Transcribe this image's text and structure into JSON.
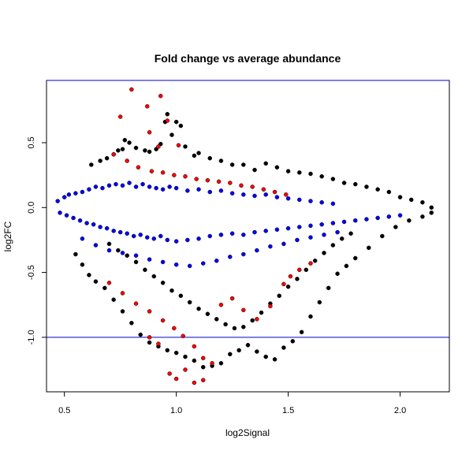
{
  "chart_data": {
    "type": "scatter",
    "title": "Fold change vs average abundance",
    "xlabel": "log2Signal",
    "ylabel": "log2FC",
    "xlim": [
      0.42,
      2.22
    ],
    "ylim": [
      -1.42,
      0.98
    ],
    "x_ticks": [
      0.5,
      1.0,
      1.5,
      2.0
    ],
    "x_tick_labels": [
      "0.5",
      "1.0",
      "1.5",
      "2.0"
    ],
    "y_ticks": [
      0.5,
      0.0,
      -0.5,
      -1.0
    ],
    "y_tick_labels": [
      "0.5",
      "0.0",
      "-0.5",
      "-1.0"
    ],
    "grid": false,
    "legend": "none",
    "reference_lines": [
      {
        "axis": "y",
        "value": 0.98,
        "color": "#0000cc"
      },
      {
        "axis": "y",
        "value": -1.0,
        "color": "#0000cc"
      }
    ],
    "series": [
      {
        "color": "#000000",
        "points": [
          [
            0.62,
            0.33
          ],
          [
            0.66,
            0.36
          ],
          [
            0.69,
            0.38
          ],
          [
            0.72,
            0.41
          ],
          [
            0.74,
            0.44
          ],
          [
            0.76,
            0.45
          ],
          [
            0.77,
            0.52
          ],
          [
            0.79,
            0.5
          ],
          [
            0.82,
            0.46
          ],
          [
            0.86,
            0.44
          ],
          [
            0.88,
            0.43
          ],
          [
            0.91,
            0.45
          ],
          [
            0.93,
            0.49
          ],
          [
            0.95,
            0.66
          ],
          [
            0.96,
            0.72
          ],
          [
            0.98,
            0.56
          ],
          [
            1.0,
            0.66
          ],
          [
            1.02,
            0.63
          ],
          [
            1.04,
            0.47
          ],
          [
            1.08,
            0.4
          ],
          [
            1.1,
            0.42
          ],
          [
            1.15,
            0.38
          ],
          [
            1.2,
            0.36
          ],
          [
            1.25,
            0.33
          ],
          [
            1.3,
            0.33
          ],
          [
            1.35,
            0.29
          ],
          [
            1.4,
            0.34
          ],
          [
            1.45,
            0.31
          ],
          [
            1.5,
            0.28
          ],
          [
            1.55,
            0.27
          ],
          [
            1.6,
            0.26
          ],
          [
            1.65,
            0.24
          ],
          [
            1.7,
            0.22
          ],
          [
            1.75,
            0.19
          ],
          [
            1.8,
            0.18
          ],
          [
            1.85,
            0.16
          ],
          [
            1.9,
            0.14
          ],
          [
            1.95,
            0.12
          ],
          [
            2.0,
            0.08
          ],
          [
            2.05,
            0.06
          ],
          [
            2.1,
            0.04
          ],
          [
            2.14,
            0.0
          ],
          [
            0.55,
            -0.36
          ],
          [
            0.58,
            -0.44
          ],
          [
            0.61,
            -0.52
          ],
          [
            0.64,
            -0.57
          ],
          [
            0.68,
            -0.62
          ],
          [
            0.72,
            -0.71
          ],
          [
            0.76,
            -0.8
          ],
          [
            0.8,
            -0.89
          ],
          [
            0.84,
            -0.98
          ],
          [
            0.88,
            -1.04
          ],
          [
            0.92,
            -1.07
          ],
          [
            0.96,
            -1.1
          ],
          [
            1.0,
            -1.12
          ],
          [
            1.04,
            -1.15
          ],
          [
            1.08,
            -1.18
          ],
          [
            1.12,
            -1.23
          ],
          [
            1.16,
            -1.22
          ],
          [
            1.2,
            -1.2
          ],
          [
            1.24,
            -1.13
          ],
          [
            1.28,
            -1.1
          ],
          [
            1.32,
            -1.06
          ],
          [
            1.36,
            -1.11
          ],
          [
            1.4,
            -1.15
          ],
          [
            1.44,
            -1.17
          ],
          [
            1.48,
            -1.08
          ],
          [
            1.52,
            -1.03
          ],
          [
            1.56,
            -0.96
          ],
          [
            1.6,
            -0.84
          ],
          [
            1.64,
            -0.73
          ],
          [
            1.68,
            -0.62
          ],
          [
            1.72,
            -0.51
          ],
          [
            1.76,
            -0.45
          ],
          [
            1.8,
            -0.39
          ],
          [
            1.86,
            -0.31
          ],
          [
            1.92,
            -0.22
          ],
          [
            1.98,
            -0.15
          ],
          [
            2.04,
            -0.1
          ],
          [
            2.1,
            -0.07
          ],
          [
            2.14,
            -0.04
          ],
          [
            0.7,
            -0.28
          ],
          [
            0.74,
            -0.33
          ],
          [
            0.78,
            -0.37
          ],
          [
            0.82,
            -0.42
          ],
          [
            0.86,
            -0.48
          ],
          [
            0.9,
            -0.53
          ],
          [
            0.94,
            -0.58
          ],
          [
            0.98,
            -0.64
          ],
          [
            1.02,
            -0.68
          ],
          [
            1.06,
            -0.73
          ],
          [
            1.1,
            -0.78
          ],
          [
            1.14,
            -0.82
          ],
          [
            1.18,
            -0.86
          ],
          [
            1.22,
            -0.9
          ],
          [
            1.26,
            -0.93
          ],
          [
            1.3,
            -0.92
          ],
          [
            1.34,
            -0.87
          ],
          [
            1.38,
            -0.81
          ],
          [
            1.42,
            -0.74
          ],
          [
            1.46,
            -0.68
          ],
          [
            1.5,
            -0.61
          ],
          [
            1.54,
            -0.55
          ],
          [
            1.58,
            -0.48
          ],
          [
            1.62,
            -0.41
          ],
          [
            1.66,
            -0.35
          ],
          [
            1.7,
            -0.29
          ],
          [
            1.74,
            -0.24
          ],
          [
            1.78,
            -0.2
          ]
        ]
      },
      {
        "color": "#0000ff",
        "points": [
          [
            0.47,
            0.05
          ],
          [
            0.5,
            0.08
          ],
          [
            0.52,
            0.1
          ],
          [
            0.55,
            0.11
          ],
          [
            0.58,
            0.12
          ],
          [
            0.61,
            0.14
          ],
          [
            0.64,
            0.16
          ],
          [
            0.67,
            0.15
          ],
          [
            0.7,
            0.17
          ],
          [
            0.73,
            0.18
          ],
          [
            0.76,
            0.17
          ],
          [
            0.79,
            0.19
          ],
          [
            0.82,
            0.16
          ],
          [
            0.85,
            0.18
          ],
          [
            0.88,
            0.16
          ],
          [
            0.91,
            0.15
          ],
          [
            0.94,
            0.14
          ],
          [
            0.97,
            0.16
          ],
          [
            1.0,
            0.15
          ],
          [
            1.05,
            0.13
          ],
          [
            1.1,
            0.14
          ],
          [
            1.15,
            0.12
          ],
          [
            1.2,
            0.13
          ],
          [
            1.25,
            0.11
          ],
          [
            1.3,
            0.1
          ],
          [
            1.35,
            0.09
          ],
          [
            1.4,
            0.1
          ],
          [
            1.45,
            0.08
          ],
          [
            1.5,
            0.07
          ],
          [
            1.55,
            0.06
          ],
          [
            1.6,
            0.05
          ],
          [
            1.65,
            0.04
          ],
          [
            1.7,
            0.03
          ],
          [
            0.48,
            -0.04
          ],
          [
            0.51,
            -0.06
          ],
          [
            0.54,
            -0.08
          ],
          [
            0.57,
            -0.1
          ],
          [
            0.6,
            -0.12
          ],
          [
            0.63,
            -0.13
          ],
          [
            0.66,
            -0.15
          ],
          [
            0.69,
            -0.16
          ],
          [
            0.72,
            -0.18
          ],
          [
            0.75,
            -0.19
          ],
          [
            0.78,
            -0.2
          ],
          [
            0.81,
            -0.22
          ],
          [
            0.84,
            -0.21
          ],
          [
            0.87,
            -0.23
          ],
          [
            0.9,
            -0.24
          ],
          [
            0.93,
            -0.22
          ],
          [
            0.96,
            -0.25
          ],
          [
            1.0,
            -0.26
          ],
          [
            1.05,
            -0.25
          ],
          [
            1.1,
            -0.24
          ],
          [
            1.15,
            -0.22
          ],
          [
            1.2,
            -0.21
          ],
          [
            1.25,
            -0.2
          ],
          [
            1.3,
            -0.21
          ],
          [
            1.35,
            -0.19
          ],
          [
            1.4,
            -0.18
          ],
          [
            1.45,
            -0.17
          ],
          [
            1.5,
            -0.16
          ],
          [
            1.55,
            -0.15
          ],
          [
            1.6,
            -0.14
          ],
          [
            1.65,
            -0.13
          ],
          [
            1.7,
            -0.12
          ],
          [
            1.75,
            -0.11
          ],
          [
            1.8,
            -0.1
          ],
          [
            1.85,
            -0.09
          ],
          [
            1.9,
            -0.08
          ],
          [
            1.95,
            -0.07
          ],
          [
            2.0,
            -0.06
          ],
          [
            0.58,
            -0.24
          ],
          [
            0.64,
            -0.29
          ],
          [
            0.7,
            -0.33
          ],
          [
            0.76,
            -0.35
          ],
          [
            0.82,
            -0.37
          ],
          [
            0.88,
            -0.4
          ],
          [
            0.94,
            -0.42
          ],
          [
            1.0,
            -0.44
          ],
          [
            1.06,
            -0.45
          ],
          [
            1.12,
            -0.43
          ],
          [
            1.18,
            -0.41
          ],
          [
            1.24,
            -0.38
          ],
          [
            1.3,
            -0.36
          ],
          [
            1.36,
            -0.33
          ],
          [
            1.42,
            -0.3
          ],
          [
            1.48,
            -0.28
          ],
          [
            1.54,
            -0.25
          ],
          [
            1.6,
            -0.23
          ],
          [
            1.66,
            -0.21
          ],
          [
            1.72,
            -0.19
          ]
        ]
      },
      {
        "color": "#ff0000",
        "points": [
          [
            0.8,
            0.91
          ],
          [
            0.87,
            0.78
          ],
          [
            0.93,
            0.86
          ],
          [
            0.75,
            0.7
          ],
          [
            0.96,
            0.67
          ],
          [
            0.88,
            0.58
          ],
          [
            0.92,
            0.47
          ],
          [
            1.01,
            0.48
          ],
          [
            0.72,
            0.41
          ],
          [
            0.78,
            0.36
          ],
          [
            0.83,
            0.31
          ],
          [
            0.89,
            0.28
          ],
          [
            0.94,
            0.27
          ],
          [
            0.99,
            0.25
          ],
          [
            1.04,
            0.24
          ],
          [
            1.09,
            0.22
          ],
          [
            1.14,
            0.21
          ],
          [
            1.19,
            0.2
          ],
          [
            1.24,
            0.19
          ],
          [
            1.29,
            0.17
          ],
          [
            1.34,
            0.16
          ],
          [
            1.39,
            0.14
          ],
          [
            1.44,
            0.12
          ],
          [
            1.49,
            0.1
          ],
          [
            0.7,
            -0.58
          ],
          [
            0.76,
            -0.66
          ],
          [
            0.82,
            -0.74
          ],
          [
            0.88,
            -0.8
          ],
          [
            0.94,
            -0.87
          ],
          [
            0.99,
            -0.93
          ],
          [
            1.03,
            -0.99
          ],
          [
            1.08,
            -1.07
          ],
          [
            1.12,
            -1.16
          ],
          [
            1.16,
            -1.2
          ],
          [
            1.04,
            -1.25
          ],
          [
            1.0,
            -1.32
          ],
          [
            0.97,
            -1.28
          ],
          [
            1.08,
            -1.35
          ],
          [
            1.12,
            -1.33
          ],
          [
            0.88,
            -1.0
          ],
          [
            0.92,
            -1.05
          ],
          [
            1.2,
            -0.75
          ],
          [
            1.25,
            -0.7
          ],
          [
            1.3,
            -0.79
          ],
          [
            1.36,
            -0.86
          ],
          [
            1.42,
            -0.76
          ],
          [
            1.48,
            -0.59
          ],
          [
            1.51,
            -0.53
          ],
          [
            1.55,
            -0.48
          ],
          [
            1.6,
            -0.43
          ]
        ]
      }
    ]
  }
}
